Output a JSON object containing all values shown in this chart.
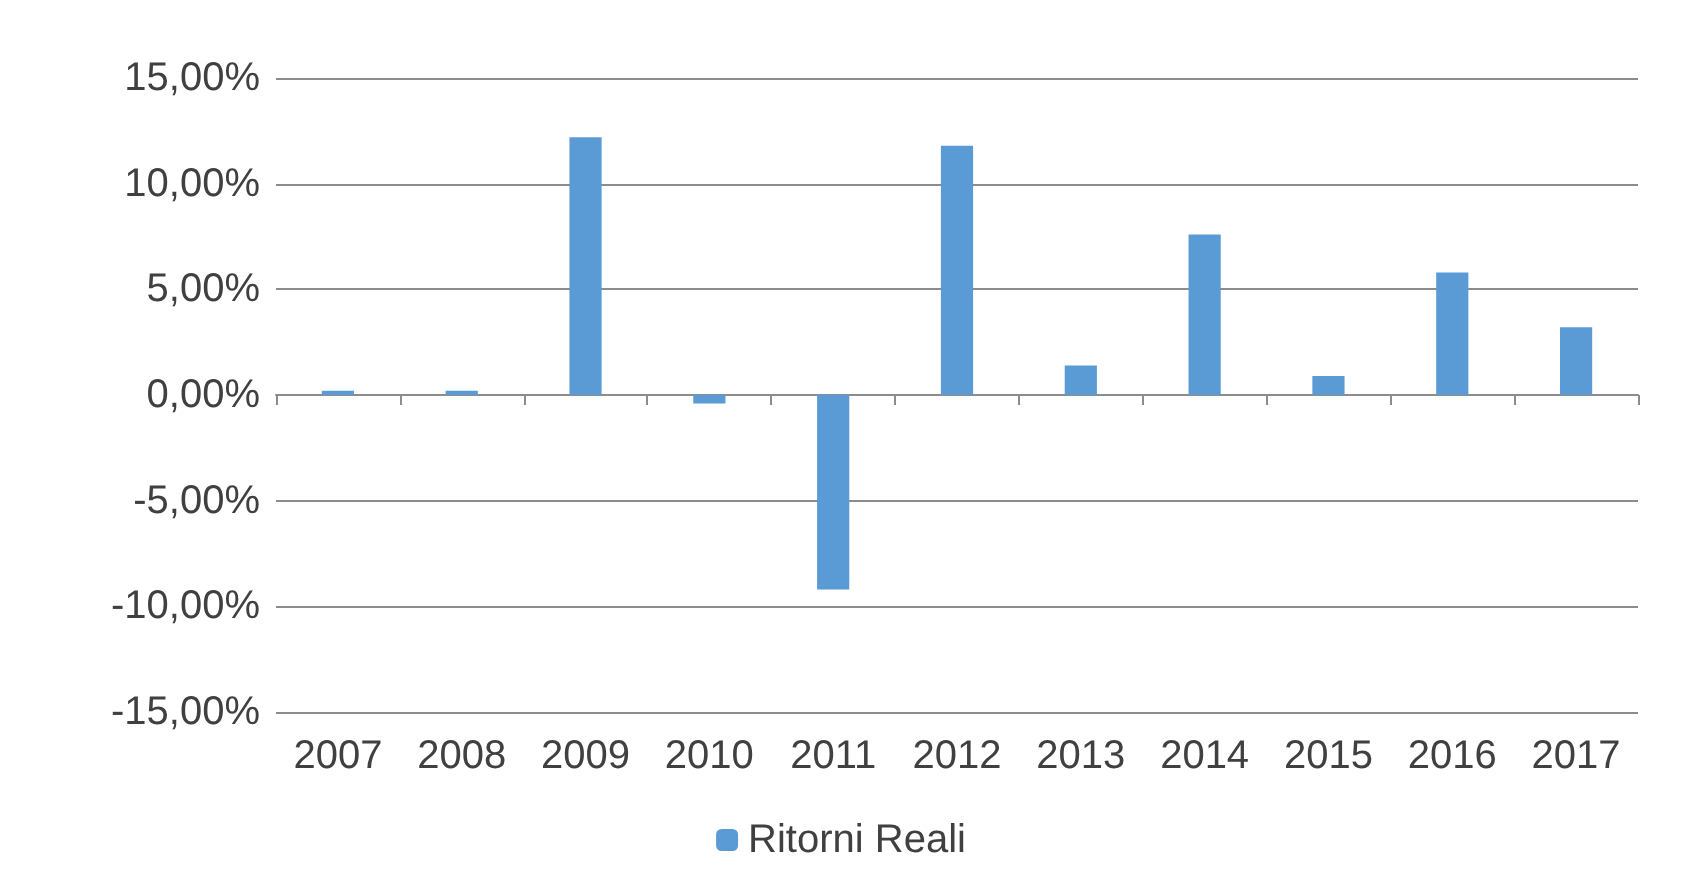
{
  "chart_data": {
    "type": "bar",
    "categories": [
      "2007",
      "2008",
      "2009",
      "2010",
      "2011",
      "2012",
      "2013",
      "2014",
      "2015",
      "2016",
      "2017"
    ],
    "series": [
      {
        "name": "Ritorni Reali",
        "color": "#5b9bd5",
        "values": [
          0.2,
          0.2,
          12.2,
          -0.4,
          -9.2,
          11.8,
          1.4,
          7.6,
          0.9,
          5.8,
          3.2
        ]
      }
    ],
    "ylim": [
      -15,
      15
    ],
    "yticks": [
      {
        "value": -15,
        "label": "-15,00%"
      },
      {
        "value": -10,
        "label": "-10,00%"
      },
      {
        "value": -5,
        "label": "-5,00%"
      },
      {
        "value": 0,
        "label": "0,00%"
      },
      {
        "value": 5,
        "label": "5,00%"
      },
      {
        "value": 10,
        "label": "10,00%"
      },
      {
        "value": 15,
        "label": "15,00%"
      }
    ],
    "grid": "y",
    "legend": "bottom"
  }
}
